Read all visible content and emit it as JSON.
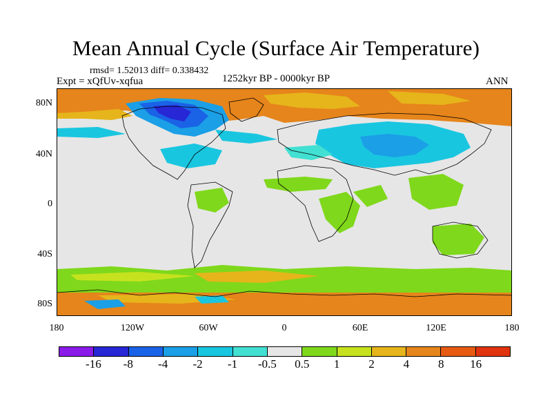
{
  "title": "Mean Annual Cycle (Surface Air Temperature)",
  "stats": "rmsd= 1.52013 diff= 0.338432",
  "experiment": "Expt = xQfUv-xqfua",
  "period": "1252kyr BP - 0000kyr BP",
  "season": "ANN",
  "y_axis_labels": [
    "80N",
    "40N",
    "0",
    "40S",
    "80S"
  ],
  "x_axis_labels": [
    "180",
    "120W",
    "60W",
    "0",
    "60E",
    "120E",
    "180"
  ],
  "colorbar": {
    "labels": [
      "-16",
      "-8",
      "-4",
      "-2",
      "-1",
      "-0.5",
      "0.5",
      "1",
      "2",
      "4",
      "8",
      "16"
    ],
    "colors": [
      "#8a1be8",
      "#2727d6",
      "#1a62e6",
      "#1b9fe6",
      "#19c6e0",
      "#41e0d2",
      "#e6e6e6",
      "#7fd81b",
      "#c6e21e",
      "#e6b51b",
      "#e6851b",
      "#e65a12",
      "#e0330f"
    ]
  }
}
